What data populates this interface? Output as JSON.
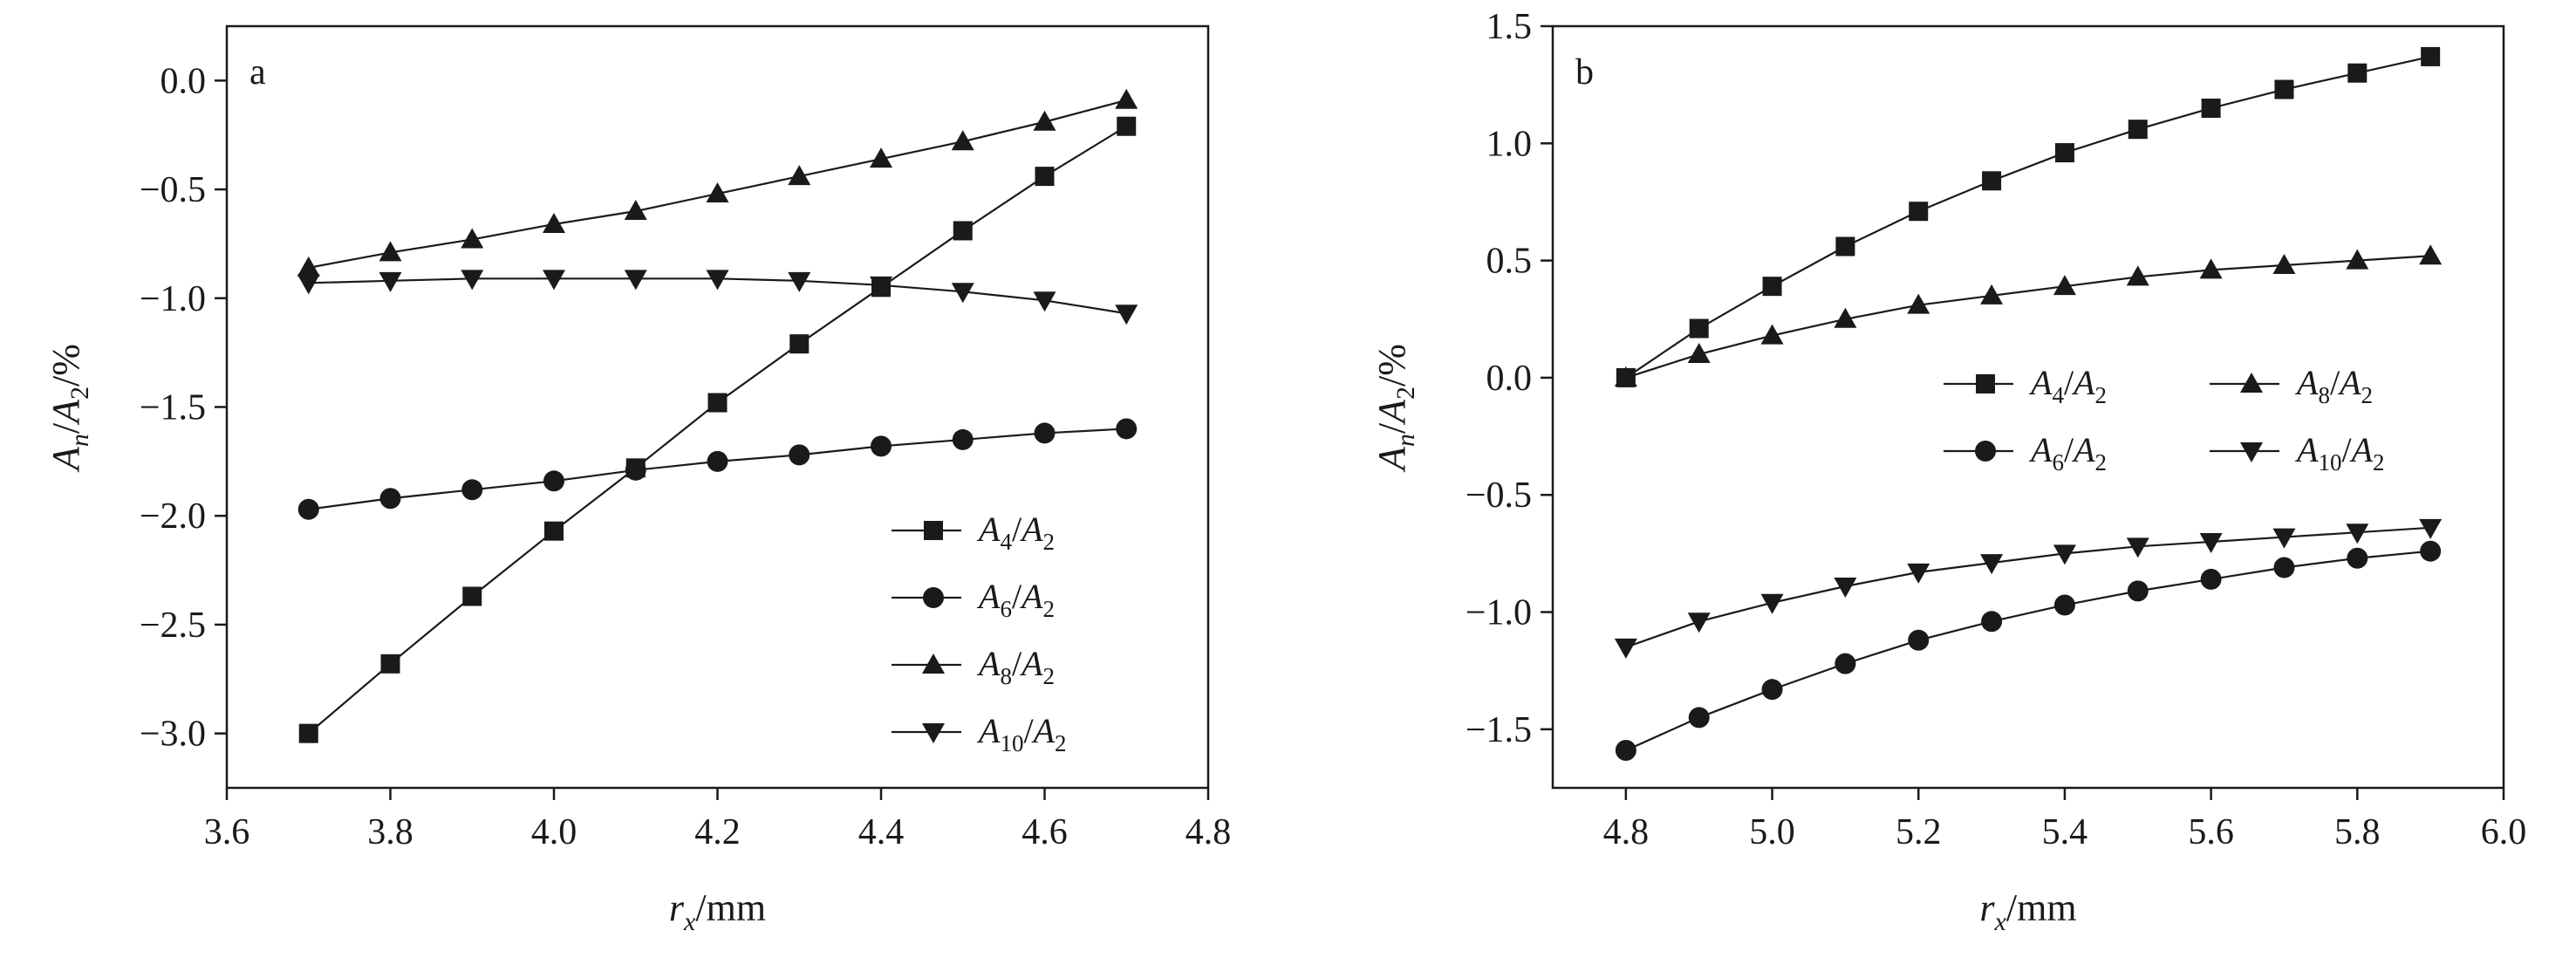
{
  "chart_data": [
    {
      "type": "line",
      "panel_label": "a",
      "xlabel": {
        "main": "r",
        "sub": "x",
        "unit": "/mm"
      },
      "ylabel": {
        "A": "A",
        "n": "n",
        "slash": "/",
        "A2": "A",
        "two": "2",
        "unit": "/%"
      },
      "xlim": [
        3.6,
        4.8
      ],
      "ylim": [
        -3.25,
        0.25
      ],
      "xticks": [
        3.6,
        3.8,
        4.0,
        4.2,
        4.4,
        4.6,
        4.8
      ],
      "xtick_labels": [
        "3.6",
        "3.8",
        "4.0",
        "4.2",
        "4.4",
        "4.6",
        "4.8"
      ],
      "yticks": [
        0.0,
        -0.5,
        -1.0,
        -1.5,
        -2.0,
        -2.5,
        -3.0
      ],
      "ytick_labels": [
        "0.0",
        "−0.5",
        "−1.0",
        "−1.5",
        "−2.0",
        "−2.5",
        "−3.0"
      ],
      "grid": false,
      "legend_position": "lower-right",
      "x": [
        3.7,
        3.8,
        3.9,
        4.0,
        4.1,
        4.2,
        4.3,
        4.4,
        4.5,
        4.6,
        4.7
      ],
      "series": [
        {
          "name": {
            "num": "A",
            "num_sub": "4",
            "den": "A",
            "den_sub": "2"
          },
          "marker": "square",
          "values": [
            -3.0,
            -2.68,
            -2.37,
            -2.07,
            -1.78,
            -1.48,
            -1.21,
            -0.95,
            -0.69,
            -0.44,
            -0.21
          ]
        },
        {
          "name": {
            "num": "A",
            "num_sub": "6",
            "den": "A",
            "den_sub": "2"
          },
          "marker": "circle",
          "values": [
            -1.97,
            -1.92,
            -1.88,
            -1.84,
            -1.79,
            -1.75,
            -1.72,
            -1.68,
            -1.65,
            -1.62,
            -1.6
          ]
        },
        {
          "name": {
            "num": "A",
            "num_sub": "8",
            "den": "A",
            "den_sub": "2"
          },
          "marker": "triangle-up",
          "values": [
            -0.86,
            -0.79,
            -0.73,
            -0.66,
            -0.6,
            -0.52,
            -0.44,
            -0.36,
            -0.28,
            -0.19,
            -0.09
          ]
        },
        {
          "name": {
            "num": "A",
            "num_sub": "10",
            "den": "A",
            "den_sub": "2"
          },
          "marker": "triangle-down",
          "values": [
            -0.93,
            -0.92,
            -0.91,
            -0.91,
            -0.91,
            -0.91,
            -0.92,
            -0.94,
            -0.97,
            -1.01,
            -1.07
          ]
        }
      ]
    },
    {
      "type": "line",
      "panel_label": "b",
      "xlabel": {
        "main": "r",
        "sub": "x",
        "unit": "/mm"
      },
      "ylabel": {
        "A": "A",
        "n": "n",
        "slash": "/",
        "A2": "A",
        "two": "2",
        "unit": "/%"
      },
      "xlim": [
        4.7,
        6.0
      ],
      "ylim": [
        -1.75,
        1.5
      ],
      "xticks": [
        4.8,
        5.0,
        5.2,
        5.4,
        5.6,
        5.8,
        6.0
      ],
      "xtick_labels": [
        "4.8",
        "5.0",
        "5.2",
        "5.4",
        "5.6",
        "5.8",
        "6.0"
      ],
      "yticks": [
        1.5,
        1.0,
        0.5,
        0.0,
        -0.5,
        -1.0,
        -1.5
      ],
      "ytick_labels": [
        "1.5",
        "1.0",
        "0.5",
        "0.0",
        "−0.5",
        "−1.0",
        "−1.5"
      ],
      "grid": false,
      "legend_position": "center-right",
      "x": [
        4.8,
        4.9,
        5.0,
        5.1,
        5.2,
        5.3,
        5.4,
        5.5,
        5.6,
        5.7,
        5.8,
        5.9
      ],
      "series": [
        {
          "name": {
            "num": "A",
            "num_sub": "4",
            "den": "A",
            "den_sub": "2"
          },
          "marker": "square",
          "values": [
            0.0,
            0.21,
            0.39,
            0.56,
            0.71,
            0.84,
            0.96,
            1.06,
            1.15,
            1.23,
            1.3,
            1.37
          ]
        },
        {
          "name": {
            "num": "A",
            "num_sub": "6",
            "den": "A",
            "den_sub": "2"
          },
          "marker": "circle",
          "values": [
            -1.59,
            -1.45,
            -1.33,
            -1.22,
            -1.12,
            -1.04,
            -0.97,
            -0.91,
            -0.86,
            -0.81,
            -0.77,
            -0.74
          ]
        },
        {
          "name": {
            "num": "A",
            "num_sub": "8",
            "den": "A",
            "den_sub": "2"
          },
          "marker": "triangle-up",
          "values": [
            0.0,
            0.1,
            0.18,
            0.25,
            0.31,
            0.35,
            0.39,
            0.43,
            0.46,
            0.48,
            0.5,
            0.52
          ]
        },
        {
          "name": {
            "num": "A",
            "num_sub": "10",
            "den": "A",
            "den_sub": "2"
          },
          "marker": "triangle-down",
          "values": [
            -1.15,
            -1.04,
            -0.96,
            -0.89,
            -0.83,
            -0.79,
            -0.75,
            -0.72,
            -0.7,
            -0.68,
            -0.66,
            -0.64
          ]
        }
      ]
    }
  ]
}
